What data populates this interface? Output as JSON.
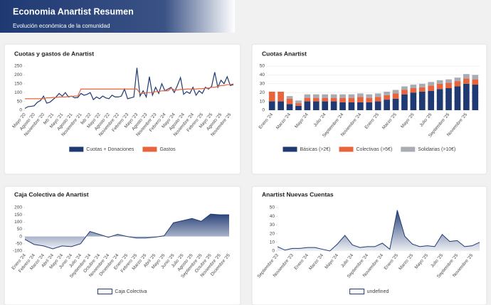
{
  "header": {
    "title": "Economia Anartist Resumen",
    "subtitle": "Evolución económica de la comunidad"
  },
  "chart_data": [
    {
      "type": "line",
      "title": "Cuotas y gastos de Anartist",
      "categories": [
        "Mayo '20",
        null,
        null,
        "Agosto '20",
        null,
        null,
        "Noviembre '20",
        null,
        null,
        "feb '21",
        null,
        null,
        "Mayo '21",
        null,
        null,
        "Agosto '21",
        null,
        null,
        "Noviembre '21",
        null,
        null,
        "feb '22",
        null,
        null,
        "Mayo '22",
        null,
        null,
        "Agosto '22",
        null,
        null,
        "Noviembre '22",
        null,
        null,
        "Febrero '23",
        null,
        null,
        "Mayo '23",
        null,
        null,
        "Agosto '23",
        null,
        null,
        "Noviembre '23",
        null,
        null,
        "Febrero '24",
        null,
        null,
        "Mayo '24",
        null,
        null,
        "Agosto '24",
        null,
        null,
        "Noviembre '24",
        null,
        null,
        "Febrero '25",
        null,
        null,
        "Mayo '25",
        null,
        null,
        "Agosto '25",
        null,
        null,
        "Noviembre '25",
        null
      ],
      "series": [
        {
          "name": "Cuotas + Donaciones",
          "color": "#1f3a73",
          "values": [
            10,
            20,
            22,
            25,
            45,
            55,
            80,
            40,
            45,
            60,
            75,
            95,
            80,
            100,
            75,
            80,
            70,
            72,
            95,
            85,
            90,
            100,
            60,
            75,
            65,
            80,
            70,
            65,
            85,
            75,
            75,
            80,
            120,
            65,
            70,
            75,
            240,
            80,
            110,
            75,
            190,
            85,
            130,
            95,
            150,
            110,
            120,
            130,
            100,
            140,
            185,
            90,
            105,
            95,
            130,
            85,
            110,
            95,
            130,
            120,
            135,
            215,
            130,
            170,
            150,
            190,
            140,
            145
          ]
        },
        {
          "name": "Gastos",
          "color": "#e8643c",
          "values": [
            65,
            65,
            65,
            65,
            65,
            65,
            65,
            70,
            70,
            72,
            72,
            75,
            75,
            75,
            78,
            78,
            80,
            80,
            120,
            120,
            120,
            120,
            120,
            120,
            120,
            120,
            120,
            120,
            120,
            120,
            120,
            120,
            120,
            120,
            120,
            120,
            120,
            95,
            95,
            100,
            100,
            100,
            105,
            105,
            110,
            110,
            110,
            125,
            115,
            115,
            118,
            118,
            120,
            120,
            120,
            120,
            122,
            122,
            125,
            125,
            130,
            130,
            135,
            140,
            140,
            145,
            145,
            150
          ]
        }
      ],
      "ylim": [
        0,
        250
      ],
      "yticks": [
        0,
        50,
        100,
        150,
        200,
        250
      ],
      "grid": false
    },
    {
      "type": "bar",
      "stacked": true,
      "title": "Cuotas Anartist",
      "categories": [
        "Enero '24",
        null,
        "Marzo '24",
        null,
        "Mayo '24",
        null,
        "Julio '24",
        null,
        "Septiembre '24",
        null,
        "Noviembre '24",
        null,
        "Enero '25",
        null,
        "Marzo '25",
        null,
        "Mayo '25",
        null,
        "Julio '25",
        null,
        "Septiembre '25",
        null,
        "Noviembre '25",
        null
      ],
      "series": [
        {
          "name": "Básicas (>2€)",
          "color": "#1f3a73",
          "values": [
            10,
            10,
            7,
            5,
            10,
            10,
            10,
            10,
            9,
            9,
            9,
            9,
            10,
            12,
            13,
            18,
            20,
            21,
            22,
            24,
            25,
            27,
            30,
            29
          ]
        },
        {
          "name": "Colectivas (>5€)",
          "color": "#e8643c",
          "values": [
            11,
            11,
            6,
            3,
            4,
            4,
            4,
            4,
            5,
            5,
            6,
            5,
            5,
            5,
            6,
            5,
            5,
            5,
            6,
            6,
            6,
            6,
            6,
            6
          ]
        },
        {
          "name": "Solidarias (>10€)",
          "color": "#a9adb3",
          "values": [
            0,
            0,
            3,
            3,
            4,
            4,
            4,
            4,
            4,
            4,
            4,
            4,
            4,
            4,
            4,
            4,
            4,
            4,
            4,
            4,
            4,
            4,
            5,
            5
          ]
        }
      ],
      "ylim": [
        0,
        50
      ],
      "yticks": [
        0,
        10,
        20,
        30,
        40,
        50
      ],
      "grid": true
    },
    {
      "type": "area",
      "title": "Caja Colectiva de Anartist",
      "categories": [
        "Enero '24",
        "Febrero '24",
        "Marzo '24",
        "Abril '24",
        "Mayo '24",
        "Junio '24",
        "Julio '24",
        "Septiembre '24",
        "Octubre '24",
        "Noviembre '24",
        "Diciembre '24",
        "Enero '25",
        "Febrero '25",
        "Marzo '25",
        "Abril '25",
        "Mayo '25",
        "Junio '25",
        "Julio '25",
        "Agosto '25",
        "Septiembre '25",
        "Octubre '25",
        "Noviembre '25",
        "Diciembre '25"
      ],
      "series": [
        {
          "name": "Caja Colectiva",
          "color": "#1f3a73",
          "values": [
            -20,
            -55,
            -65,
            -85,
            -65,
            -70,
            -50,
            35,
            15,
            -5,
            15,
            0,
            -10,
            -10,
            -5,
            5,
            95,
            110,
            125,
            105,
            155,
            150,
            150
          ]
        }
      ],
      "ylim": [
        -100,
        200
      ],
      "yticks": [
        -100,
        -50,
        0,
        50,
        100,
        150,
        200
      ],
      "grid": false
    },
    {
      "type": "area",
      "title": "Anartist Nuevas Cuentas",
      "categories": [
        "Septiembre '23",
        null,
        "Noviembre '23",
        null,
        "Enero '24",
        null,
        "Marzo '24",
        null,
        "Mayo '24",
        null,
        "Julio '24",
        null,
        "Septiembre '24",
        null,
        "Noviembre '24",
        null,
        "Enero '25",
        null,
        "Marzo '25",
        null,
        "Mayo '25",
        null,
        "Julio '25",
        null,
        "Septiembre '25",
        null,
        "Noviembre '25",
        null
      ],
      "series": [
        {
          "name": "undefined",
          "color": "#1f3a73",
          "values": [
            5,
            1,
            3,
            3,
            4,
            4,
            2,
            0,
            8,
            18,
            7,
            4,
            5,
            5,
            9,
            2,
            47,
            17,
            8,
            5,
            6,
            5,
            19,
            11,
            12,
            5,
            6,
            10
          ]
        }
      ],
      "ylim": [
        0,
        50
      ],
      "yticks": [
        0,
        10,
        20,
        30,
        40,
        50
      ],
      "grid": false
    }
  ]
}
